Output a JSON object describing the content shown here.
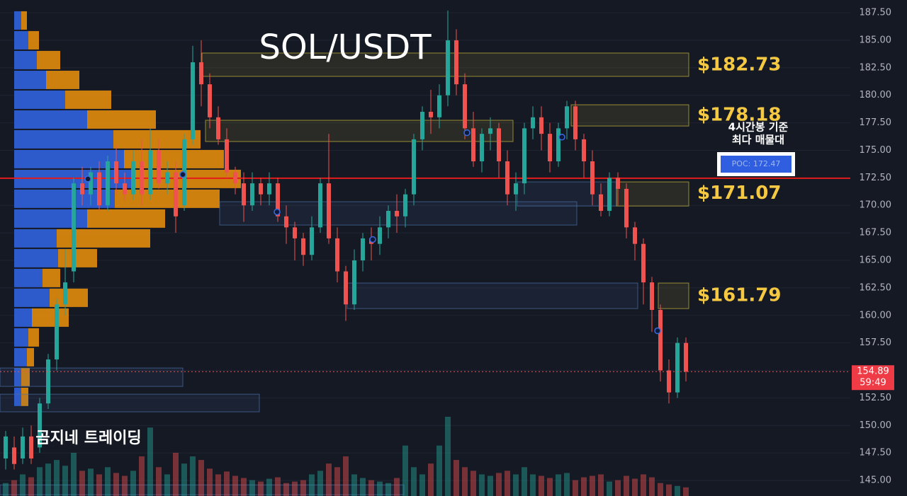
{
  "chart_data": {
    "type": "candlestick",
    "title": "SOL/USDT",
    "watermark": "곰지네 트레이딩",
    "ylim": [
      143.59,
      188.66
    ],
    "yticks": [
      {
        "value": 187.5,
        "label": "187.50"
      },
      {
        "value": 185,
        "label": "185.00"
      },
      {
        "value": 182.5,
        "label": "182.50"
      },
      {
        "value": 180,
        "label": "180.00"
      },
      {
        "value": 177.5,
        "label": "177.50"
      },
      {
        "value": 175,
        "label": "175.00"
      },
      {
        "value": 172.5,
        "label": "172.50"
      },
      {
        "value": 170,
        "label": "170.00"
      },
      {
        "value": 167.5,
        "label": "167.50"
      },
      {
        "value": 165,
        "label": "165.00"
      },
      {
        "value": 162.5,
        "label": "162.50"
      },
      {
        "value": 160,
        "label": "160.00"
      },
      {
        "value": 157.5,
        "label": "157.50"
      },
      {
        "value": 155,
        "label": "155.00"
      },
      {
        "value": 152.5,
        "label": "152.50"
      },
      {
        "value": 150,
        "label": "150.00"
      },
      {
        "value": 147.5,
        "label": "147.50"
      },
      {
        "value": 145,
        "label": "145.00"
      }
    ],
    "grid": true,
    "up_color": "#26a69a",
    "down_color": "#ef5350",
    "ohlc": [
      [
        147,
        149.5,
        146,
        149
      ],
      [
        148,
        149,
        146,
        146.5
      ],
      [
        147,
        149.8,
        146.5,
        149
      ],
      [
        149,
        150,
        146.5,
        147
      ],
      [
        148,
        152.5,
        147.5,
        152
      ],
      [
        152,
        156.5,
        151.5,
        156
      ],
      [
        156,
        161.5,
        155,
        161
      ],
      [
        161,
        166,
        160,
        163
      ],
      [
        164,
        172.5,
        163,
        172
      ],
      [
        172,
        173.5,
        170,
        171
      ],
      [
        171,
        173.5,
        170,
        173
      ],
      [
        173,
        174,
        169.5,
        170
      ],
      [
        170,
        174.5,
        169.5,
        174
      ],
      [
        174,
        175.5,
        171,
        172
      ],
      [
        172,
        173,
        170.5,
        171
      ],
      [
        171,
        175,
        170.5,
        174
      ],
      [
        174,
        176,
        170,
        171
      ],
      [
        171,
        177,
        170.5,
        175
      ],
      [
        175,
        176,
        171.5,
        172
      ],
      [
        172,
        174,
        171,
        173
      ],
      [
        173,
        174,
        167.5,
        169
      ],
      [
        170,
        176.5,
        169.5,
        176
      ],
      [
        176,
        184.5,
        175.5,
        183
      ],
      [
        183,
        185,
        179,
        181
      ],
      [
        181,
        182,
        177,
        178
      ],
      [
        178,
        179,
        175.5,
        176
      ],
      [
        176,
        177,
        172.5,
        173
      ],
      [
        173,
        173.5,
        171,
        172
      ],
      [
        172,
        173,
        168.5,
        170
      ],
      [
        170,
        173,
        169.5,
        172
      ],
      [
        172,
        172.5,
        170,
        171
      ],
      [
        171,
        173,
        170,
        172
      ],
      [
        172,
        172.5,
        168.5,
        169
      ],
      [
        169,
        170,
        166.5,
        168
      ],
      [
        168,
        168.5,
        165,
        167
      ],
      [
        167,
        167.5,
        164.5,
        165.5
      ],
      [
        165.5,
        169,
        165,
        168
      ],
      [
        168,
        172.5,
        167.5,
        172
      ],
      [
        172,
        176.5,
        166.5,
        167
      ],
      [
        167,
        168,
        163,
        164
      ],
      [
        164,
        164.5,
        159.5,
        161
      ],
      [
        161,
        166,
        160.5,
        165
      ],
      [
        165,
        167.5,
        164,
        167
      ],
      [
        167,
        168,
        165,
        166.5
      ],
      [
        166.5,
        169,
        165.5,
        168
      ],
      [
        168,
        170,
        167,
        169.5
      ],
      [
        169.5,
        171,
        167.5,
        169
      ],
      [
        169,
        171.5,
        168,
        171
      ],
      [
        171,
        176.5,
        170,
        176
      ],
      [
        176,
        179,
        175,
        178.5
      ],
      [
        178.5,
        180.5,
        176.5,
        178
      ],
      [
        178,
        181,
        177,
        180
      ],
      [
        180,
        187.7,
        179,
        185
      ],
      [
        185,
        186,
        180,
        181
      ],
      [
        181,
        182,
        176,
        177
      ],
      [
        177,
        178.5,
        173.5,
        174
      ],
      [
        174,
        177,
        173,
        176.5
      ],
      [
        176.5,
        178,
        175,
        177
      ],
      [
        177,
        177.5,
        172.5,
        174
      ],
      [
        174,
        175,
        170,
        171
      ],
      [
        171,
        173,
        169.5,
        172
      ],
      [
        172,
        177.5,
        171,
        177
      ],
      [
        177,
        179,
        176,
        178
      ],
      [
        178,
        179,
        175,
        176.5
      ],
      [
        176.5,
        177.5,
        173,
        174
      ],
      [
        174,
        177.5,
        173.5,
        177
      ],
      [
        177,
        179.5,
        176,
        179
      ],
      [
        179,
        179.5,
        175,
        176
      ],
      [
        176,
        176.5,
        172.5,
        174
      ],
      [
        174,
        175,
        170,
        171
      ],
      [
        171,
        172,
        169,
        169.5
      ],
      [
        169.5,
        173,
        169,
        172.5
      ],
      [
        172.5,
        173,
        170,
        171.5
      ],
      [
        171.5,
        172,
        167,
        168
      ],
      [
        168,
        168.5,
        165,
        166.5
      ],
      [
        166.5,
        167,
        161,
        163
      ],
      [
        163,
        163.5,
        158.5,
        160.5
      ],
      [
        160.5,
        161,
        154,
        155
      ],
      [
        155,
        156,
        152,
        153
      ],
      [
        153,
        158,
        152.5,
        157.5
      ],
      [
        157.5,
        158,
        154,
        154.89
      ]
    ],
    "volume": [
      18,
      22,
      30,
      26,
      40,
      45,
      50,
      42,
      60,
      35,
      38,
      30,
      40,
      32,
      28,
      35,
      55,
      95,
      40,
      30,
      60,
      45,
      55,
      50,
      38,
      30,
      34,
      28,
      25,
      22,
      20,
      24,
      26,
      18,
      20,
      22,
      30,
      35,
      45,
      40,
      55,
      30,
      25,
      22,
      20,
      18,
      25,
      70,
      40,
      30,
      45,
      70,
      110,
      50,
      40,
      35,
      30,
      28,
      32,
      35,
      30,
      40,
      30,
      28,
      25,
      30,
      32,
      22,
      26,
      28,
      30,
      20,
      22,
      28,
      24,
      30,
      26,
      18,
      16,
      14,
      12
    ],
    "volume_profile": {
      "bins": [
        187.7,
        185.9,
        184.1,
        182.3,
        180.5,
        178.7,
        176.9,
        175.1,
        173.3,
        171.5,
        169.7,
        167.9,
        166.1,
        164.3,
        162.5,
        160.7,
        158.9,
        157.1,
        155.3,
        153.5,
        151.7
      ],
      "buy": [
        10,
        20,
        32,
        45,
        72,
        103,
        140,
        155,
        170,
        142,
        103,
        60,
        62,
        40,
        50,
        25,
        20,
        18,
        10,
        10
      ],
      "sell": [
        8,
        15,
        33,
        47,
        65,
        97,
        123,
        141,
        150,
        148,
        110,
        132,
        55,
        25,
        54,
        52,
        15,
        10,
        12,
        10
      ],
      "buy_color": "#2e5fd6",
      "sell_color": "#d8860f"
    },
    "zones": [
      {
        "top": 183.84,
        "bottom": 181.72,
        "color": "#c9b83a"
      },
      {
        "top": 179.14,
        "bottom": 177.21,
        "color": "#c9b83a"
      },
      {
        "top": 177.73,
        "bottom": 175.8,
        "color": "#c9b83a"
      },
      {
        "top": 172.13,
        "bottom": 169.94,
        "color": "#4a6fa5"
      },
      {
        "top": 172.13,
        "bottom": 169.94,
        "color": "#c9b83a"
      },
      {
        "top": 170.33,
        "bottom": 168.21,
        "color": "#4a6fa5"
      },
      {
        "top": 162.94,
        "bottom": 160.62,
        "color": "#4a6fa5"
      },
      {
        "top": 162.94,
        "bottom": 160.62,
        "color": "#c9b83a"
      },
      {
        "top": 155.22,
        "bottom": 153.55,
        "color": "#4a6fa5"
      },
      {
        "top": 152.84,
        "bottom": 151.24,
        "color": "#4a6fa5"
      },
      {
        "top": 144.6,
        "bottom": 143.7,
        "color": "#4a6fa5"
      }
    ],
    "levels": [
      {
        "value": 182.73,
        "label": "$182.73"
      },
      {
        "value": 178.18,
        "label": "$178.18"
      },
      {
        "value": 171.07,
        "label": "$171.07"
      },
      {
        "value": 161.79,
        "label": "$161.79"
      }
    ],
    "markers": [
      172.4,
      172.8,
      169.4,
      166.9,
      176.6,
      176.2,
      158.6
    ],
    "poc": {
      "value": 172.47,
      "label": "POC: 172.47",
      "note": [
        "4시간봉 기준",
        "최다 매물대"
      ]
    },
    "last_price": {
      "value": 154.89,
      "label": "154.89"
    },
    "countdown": "59:49"
  }
}
